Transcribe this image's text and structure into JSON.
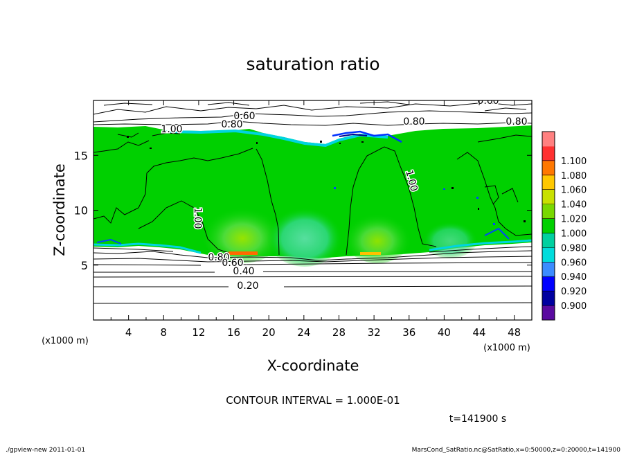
{
  "chart_data": {
    "type": "heatmap",
    "title": "saturation ratio",
    "xlabel": "X-coordinate",
    "ylabel": "Z-coordinate",
    "x_unit": "(x1000 m)",
    "y_unit": "(x1000 m)",
    "xlim": [
      0,
      50
    ],
    "ylim": [
      0,
      20
    ],
    "x_ticks": [
      "4",
      "8",
      "12",
      "16",
      "20",
      "24",
      "28",
      "32",
      "36",
      "40",
      "44",
      "48"
    ],
    "y_ticks": [
      "5",
      "10",
      "15"
    ],
    "contour_interval": "CONTOUR INTERVAL = 1.000E-01",
    "time_label": "t=141900 s",
    "contour_labels": [
      "0.60",
      "0.80",
      "1.00",
      "1.00",
      "1.00",
      "0.60",
      "0.80",
      "0.80",
      "0.60",
      "0.40",
      "0.20",
      "0.80"
    ],
    "colorbar": {
      "levels": [
        "0.900",
        "0.920",
        "0.940",
        "0.960",
        "0.980",
        "1.000",
        "1.020",
        "1.040",
        "1.060",
        "1.080",
        "1.100"
      ],
      "colors": [
        "#5a0aa0",
        "#0000a0",
        "#0000ff",
        "#3c8cff",
        "#00dcdc",
        "#00d0a0",
        "#00d000",
        "#78d800",
        "#c8e000",
        "#ffc800",
        "#ff7800",
        "#ff3030",
        "#ff8080"
      ]
    },
    "fields": {
      "saturated_layer_z": [
        6.0,
        17.5
      ],
      "dry_below_contours_z": [
        1.5,
        3.0,
        3.9,
        4.5,
        5.2,
        5.6
      ],
      "dry_above_contours_z": [
        17.8,
        18.4,
        19.0
      ]
    },
    "grid": false,
    "legend": "colorbar-right"
  },
  "footer": {
    "left": "./gpview-new   2011-01-01",
    "right": "MarsCond_SatRatio.nc@SatRatio,x=0:50000,z=0:20000,t=141900"
  }
}
